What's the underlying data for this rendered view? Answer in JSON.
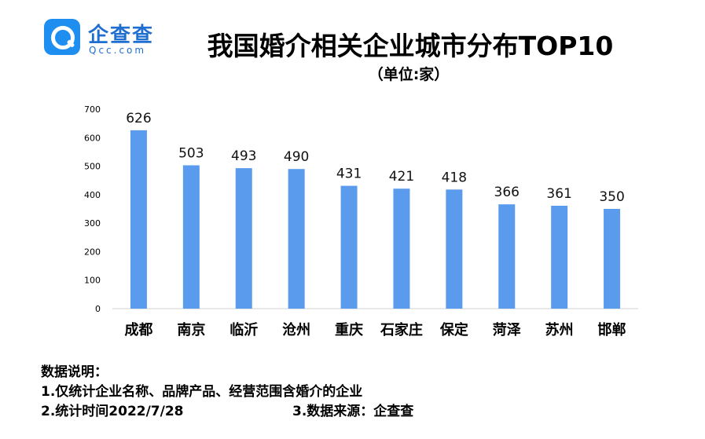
{
  "logo": {
    "name": "企查查",
    "domain": "Qcc.com",
    "icon": "magnifier-icon",
    "color": "#1f8ef1"
  },
  "chart_data": {
    "type": "bar",
    "title": "我国婚介相关企业城市分布TOP10",
    "subtitle": "（单位:家）",
    "categories": [
      "成都",
      "南京",
      "临沂",
      "沧州",
      "重庆",
      "石家庄",
      "保定",
      "菏泽",
      "苏州",
      "邯郸"
    ],
    "values": [
      626,
      503,
      493,
      490,
      431,
      421,
      418,
      366,
      361,
      350
    ],
    "ylim": [
      0,
      700
    ],
    "yticks": [
      0,
      100,
      200,
      300,
      400,
      500,
      600,
      700
    ],
    "bar_color": "#5b9bee",
    "grid": false,
    "legend": "none"
  },
  "notes": {
    "heading": "数据说明：",
    "line1": "1.仅统计企业名称、品牌产品、经营范围含婚介的企业",
    "line2a": "2.统计时间2022/7/28",
    "line2b": "3.数据来源：企查查"
  }
}
